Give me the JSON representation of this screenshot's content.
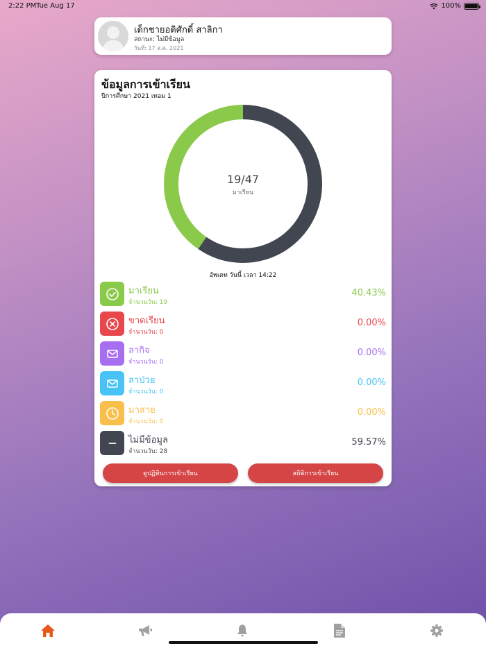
{
  "status_bar": {
    "time": "2:22 PM",
    "date": "Tue Aug 17",
    "battery": "100%"
  },
  "profile": {
    "name": "เด็กชายอดิศักดิ์ สาลิกา",
    "status": "สถานะ: ไม่มีข้อมูล",
    "date": "วันที่: 17 ส.ค. 2021"
  },
  "attendance": {
    "title": "ข้อมูลการเข้าเรียน",
    "subtitle": "ปีการศึกษา 2021 เทอม 1",
    "count": "19/47",
    "count_label": "มาเรียน",
    "updated": "อัพเดท วันนี้ เวลา 14:22"
  },
  "chart_data": {
    "type": "pie",
    "categories": [
      "มาเรียน",
      "ไม่มีข้อมูล"
    ],
    "values": [
      19,
      28
    ],
    "colors": [
      "#8bc94a",
      "#424650"
    ]
  },
  "rows": [
    {
      "label": "มาเรียน",
      "days": "จำนวนวัน: 19",
      "percent": "40.43%",
      "color": "#8bc94a",
      "icon": "check-circle-icon"
    },
    {
      "label": "ขาดเรียน",
      "days": "จำนวนวัน: 0",
      "percent": "0.00%",
      "color": "#e8474b",
      "icon": "x-circle-icon"
    },
    {
      "label": "ลากิจ",
      "days": "จำนวนวัน: 0",
      "percent": "0.00%",
      "color": "#a86ef2",
      "icon": "mail-icon"
    },
    {
      "label": "ลาป่วย",
      "days": "จำนวนวัน: 0",
      "percent": "0.00%",
      "color": "#49c3f5",
      "icon": "mail-icon"
    },
    {
      "label": "มาสาย",
      "days": "จำนวนวัน: 0",
      "percent": "0.00%",
      "color": "#f8c04a",
      "icon": "clock-icon"
    },
    {
      "label": "ไม่มีข้อมูล",
      "days": "จำนวนวัน: 28",
      "percent": "59.57%",
      "color": "#424650",
      "icon": "minus-icon"
    }
  ],
  "buttons": {
    "calendar": "ดูปฏิทินการเข้าเรียน",
    "stats": "สถิติการเข้าเรียน"
  },
  "tabs": {
    "active_color": "#e8581c",
    "inactive_color": "#a0a0a0",
    "items": [
      "home-icon",
      "megaphone-icon",
      "bell-icon",
      "document-icon",
      "gear-icon"
    ]
  }
}
